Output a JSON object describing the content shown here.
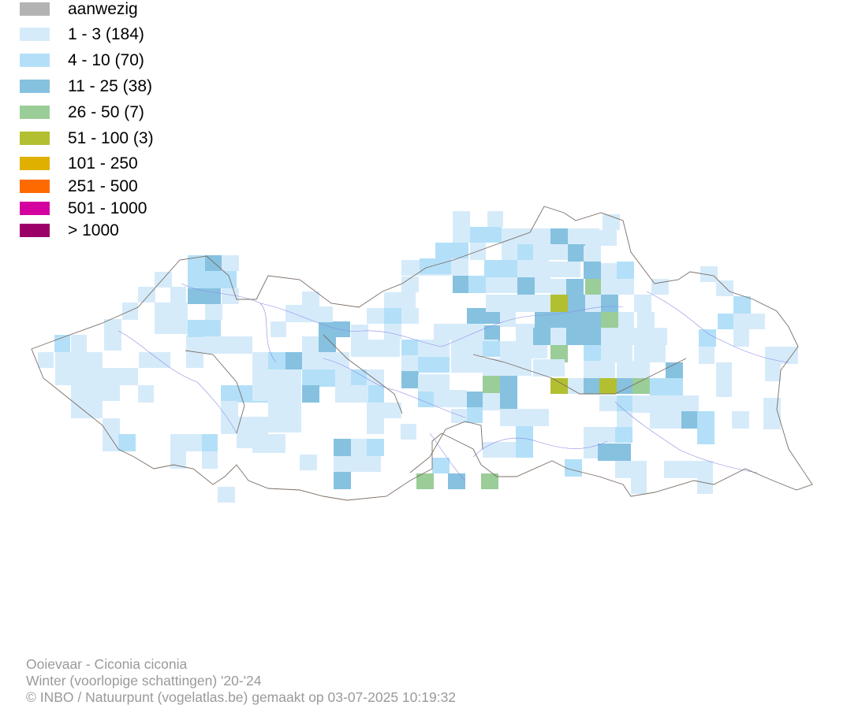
{
  "legend": {
    "items": [
      {
        "label": "aanwezig",
        "color": "#b3b3b3"
      },
      {
        "label": "1 - 3 (184)",
        "color": "#d6ebfa"
      },
      {
        "label": "4 - 10 (70)",
        "color": "#b3e0f8"
      },
      {
        "label": "11 - 25 (38)",
        "color": "#86c1e0"
      },
      {
        "label": "26 - 50 (7)",
        "color": "#9bcd98"
      },
      {
        "label": "51 - 100 (3)",
        "color": "#b2bf30"
      },
      {
        "label": "101 - 250",
        "color": "#e0b000"
      },
      {
        "label": "251 - 500",
        "color": "#ff6a00"
      },
      {
        "label": "501 - 1000",
        "color": "#d400a0"
      },
      {
        "label": "> 1000",
        "color": "#9b0068"
      }
    ]
  },
  "credits": {
    "species": "Ooievaar - Ciconia ciconia",
    "season": "Winter (voorlopige schattingen) '20-'24",
    "copyright": "© INBO / Natuurpunt (vogelatlas.be) gemaakt op 03-07-2025 10:19:32"
  }
}
